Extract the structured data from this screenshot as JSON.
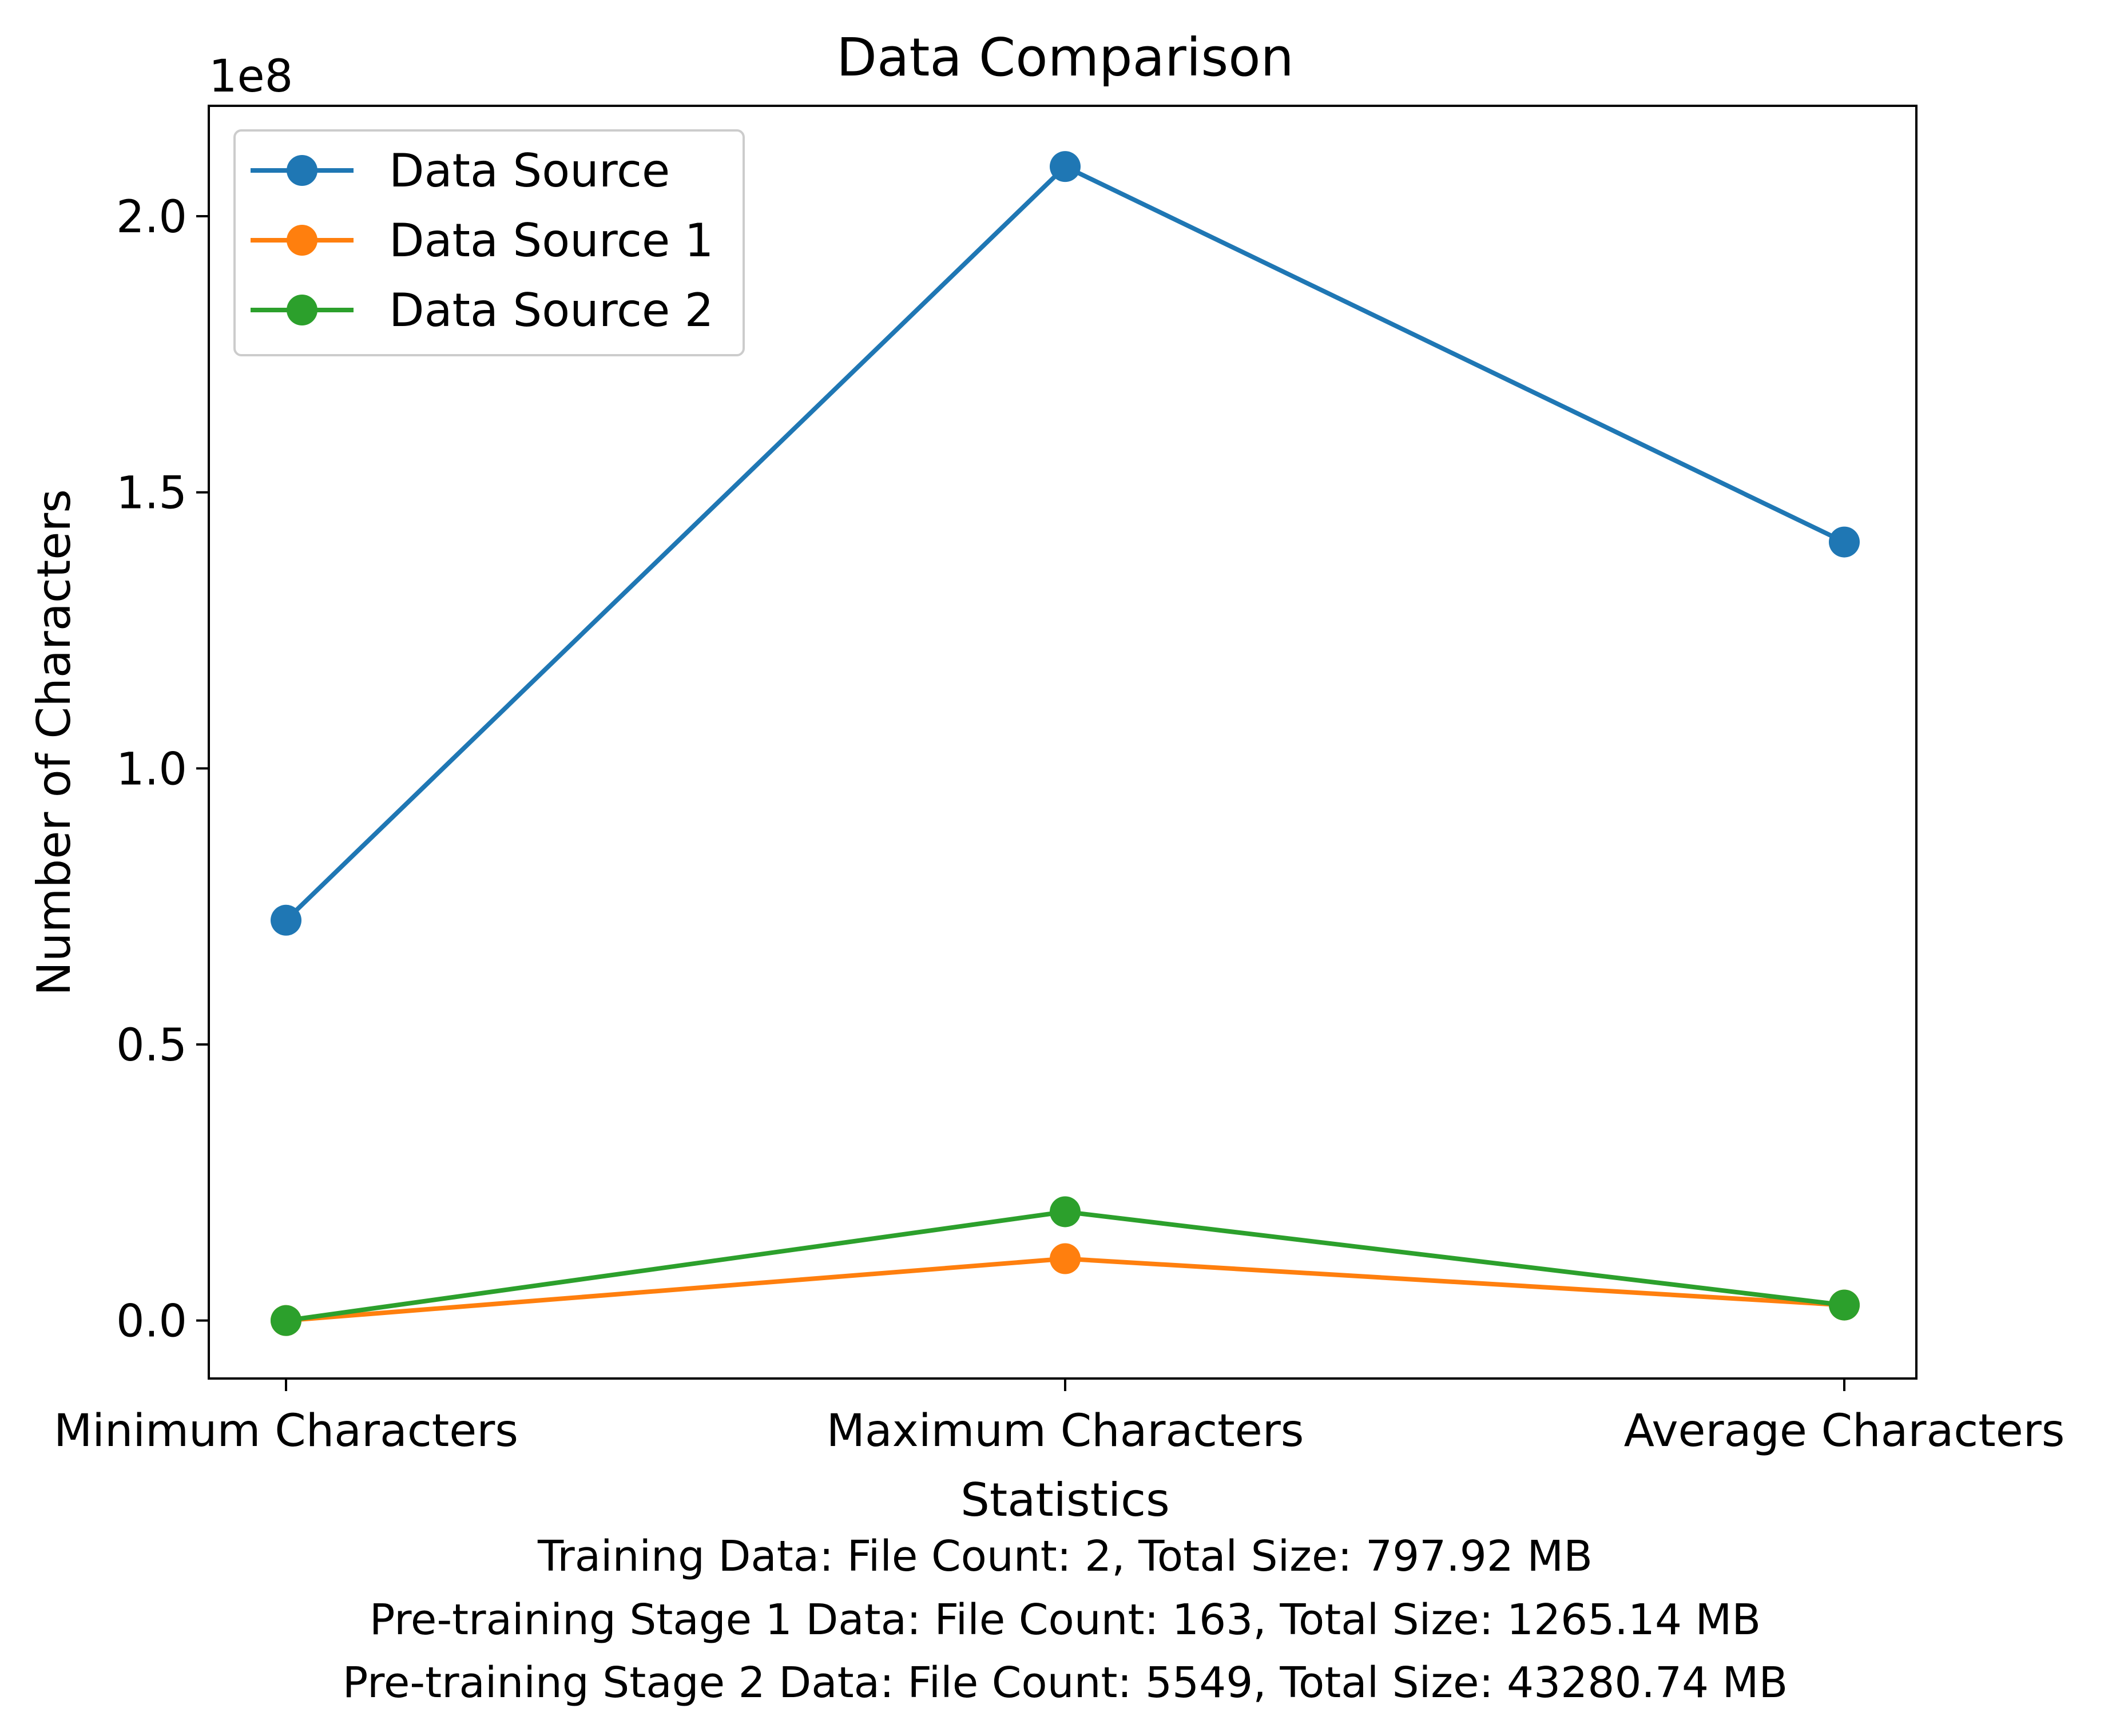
{
  "chart_data": {
    "type": "line",
    "title": "Data Comparison",
    "xlabel": "Statistics",
    "ylabel": "Number of Characters",
    "y_scale_label": "1e8",
    "ylim": [
      -10500000,
      220000000
    ],
    "yticks": [
      {
        "value": 0,
        "label": "0.0"
      },
      {
        "value": 50000000,
        "label": "0.5"
      },
      {
        "value": 100000000,
        "label": "1.0"
      },
      {
        "value": 150000000,
        "label": "1.5"
      },
      {
        "value": 200000000,
        "label": "2.0"
      }
    ],
    "categories": [
      "Minimum Characters",
      "Maximum Characters",
      "Average Characters"
    ],
    "series": [
      {
        "name": "Data Source",
        "color": "#1f77b4",
        "values": [
          72500000,
          209000000,
          141000000
        ]
      },
      {
        "name": "Data Source 1",
        "color": "#ff7f0e",
        "values": [
          0,
          11200000,
          2800000
        ]
      },
      {
        "name": "Data Source 2",
        "color": "#2ca02c",
        "values": [
          0,
          19700000,
          2800000
        ]
      }
    ],
    "grid": false,
    "legend_position": "upper-left",
    "footnotes": [
      "Training Data: File Count: 2, Total Size: 797.92 MB",
      "Pre-training Stage 1 Data: File Count: 163, Total Size: 1265.14 MB",
      "Pre-training Stage 2 Data: File Count: 5549, Total Size: 43280.74 MB"
    ]
  }
}
